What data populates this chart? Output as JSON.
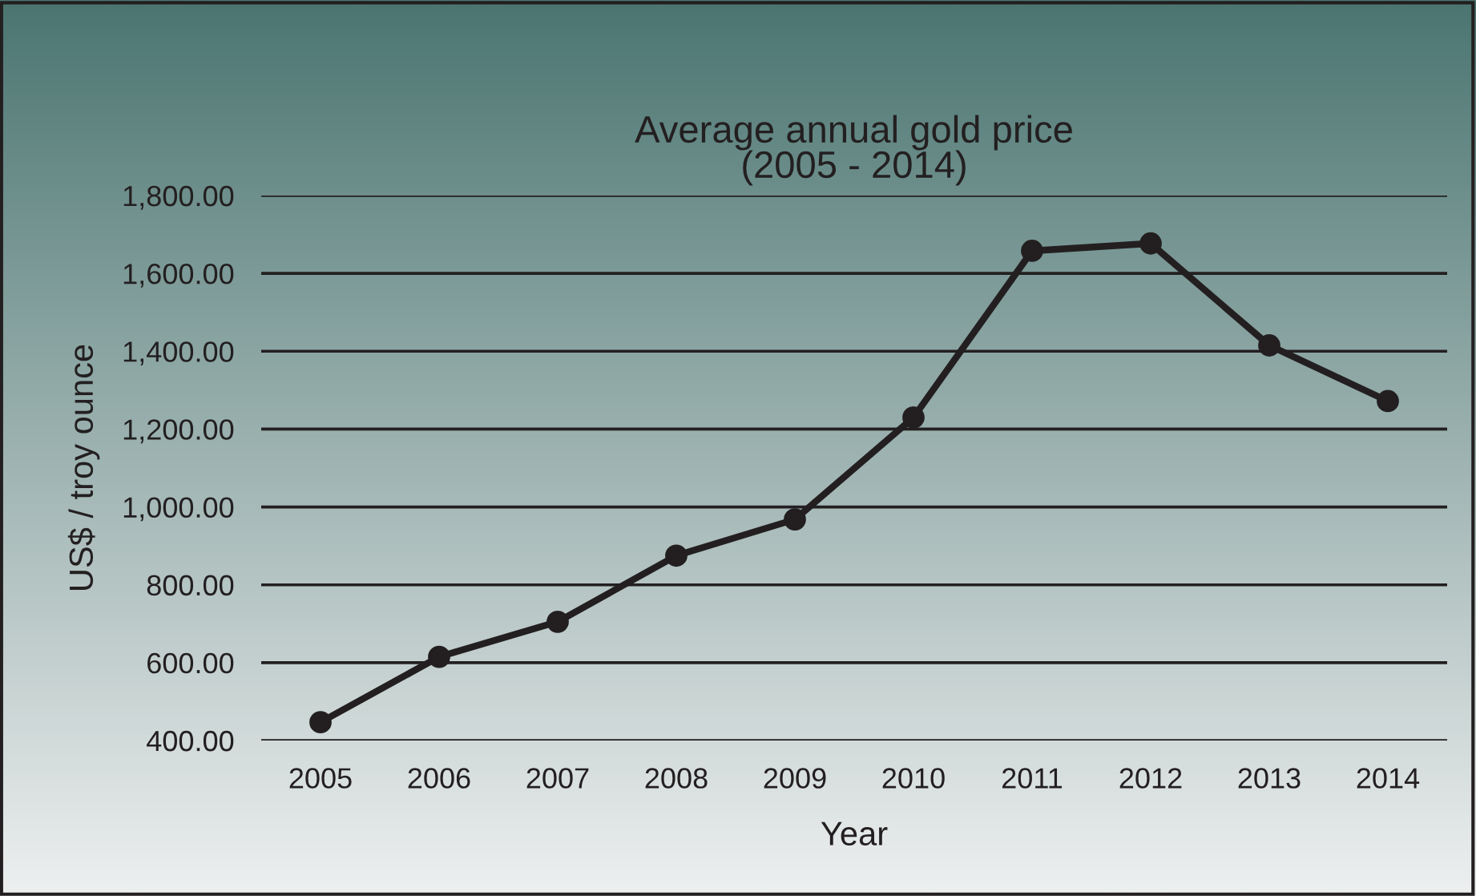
{
  "chart_data": {
    "type": "line",
    "title": "Average annual gold price\n(2005 - 2014)",
    "xlabel": "Year",
    "ylabel": "US$ / troy ounce",
    "categories": [
      "2005",
      "2006",
      "2007",
      "2008",
      "2009",
      "2010",
      "2011",
      "2012",
      "2013",
      "2014"
    ],
    "series": [
      {
        "color": "#231f20",
        "values": [
          447,
          615,
          705,
          875,
          968,
          1230,
          1658,
          1677,
          1415,
          1272
        ]
      }
    ],
    "ylim": [
      400,
      1800
    ],
    "yticks": [
      {
        "value": 400,
        "label": "400.00"
      },
      {
        "value": 600,
        "label": "600.00"
      },
      {
        "value": 800,
        "label": "800.00"
      },
      {
        "value": 1000,
        "label": "1,000.00"
      },
      {
        "value": 1200,
        "label": "1,200.00"
      },
      {
        "value": 1400,
        "label": "1,400.00"
      },
      {
        "value": 1600,
        "label": "1,600.00"
      },
      {
        "value": 1800,
        "label": "1,800.00"
      }
    ],
    "grid": "y",
    "legend": false,
    "marker": "circle",
    "line_style": "solid"
  }
}
